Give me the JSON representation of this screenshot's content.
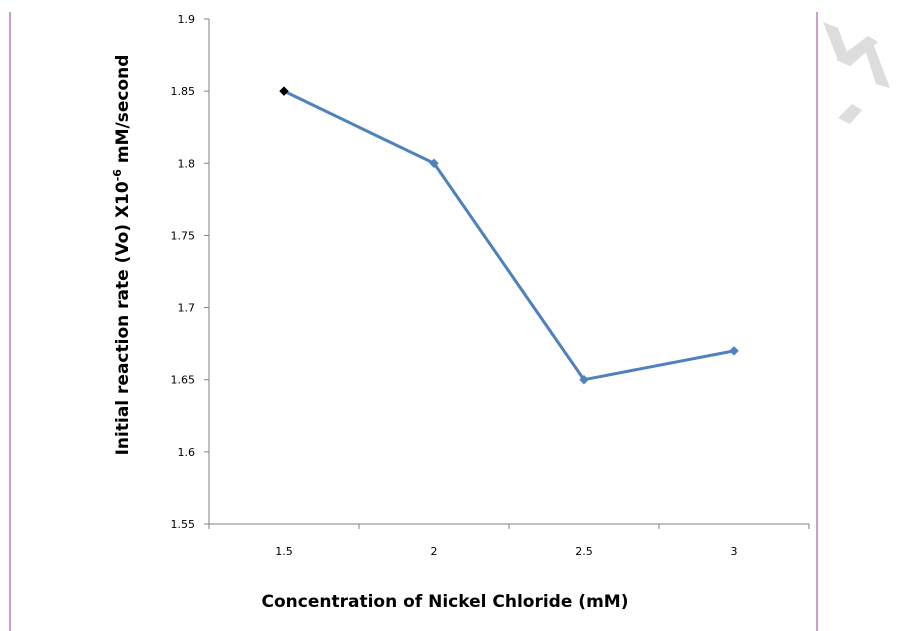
{
  "chart_data": {
    "type": "line",
    "x": [
      1.5,
      2,
      2.5,
      3
    ],
    "categories": [
      "1.5",
      "2",
      "2.5",
      "3"
    ],
    "series": [
      {
        "values": [
          1.85,
          1.8,
          1.65,
          1.67
        ],
        "color": "#4F81BD"
      }
    ],
    "first_marker_color": "#000000",
    "xlabel": "Concentration of  Nickel Chloride  (mM)",
    "ylabel_prefix": "Initial  reaction  rate  (Vo)  X10",
    "ylabel_superscript": "-6",
    "ylabel_suffix": " mM/second",
    "ylim": [
      1.55,
      1.9
    ],
    "yticks": [
      "1.55",
      "1.6",
      "1.65",
      "1.7",
      "1.75",
      "1.8",
      "1.85",
      "1.9"
    ],
    "grid": false,
    "legend": "none"
  },
  "colors": {
    "page_border": "#9B3D9B",
    "axis": "#808080",
    "watermark": "#D9D9D9"
  }
}
